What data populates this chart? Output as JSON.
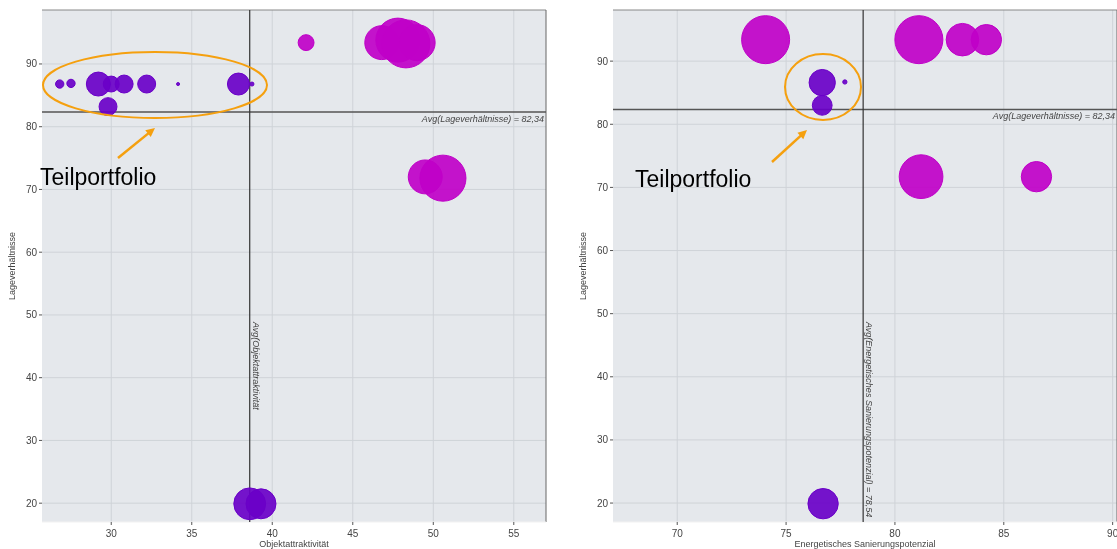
{
  "chart_data": [
    {
      "type": "bubble",
      "xlabel": "Objektattraktivität",
      "ylabel": "Lageverhältnisse",
      "xlim": [
        25.7,
        57
      ],
      "ylim": [
        17,
        98.6
      ],
      "xticks": [
        30,
        35,
        40,
        45,
        50,
        55
      ],
      "yticks": [
        20,
        30,
        40,
        50,
        60,
        70,
        80,
        90
      ],
      "grid": true,
      "ref_lines": [
        {
          "axis": "y",
          "value": 82.34,
          "label": "Avg(Lageverhältnisse) = 82,34"
        },
        {
          "axis": "x",
          "value": 38.6,
          "label": "Avg(Objektattraktivität"
        }
      ],
      "annotations": [
        "Teilportfolio"
      ],
      "series": [
        {
          "color": "#6a00c8",
          "x": [
            26.8,
            27.5,
            30.0,
            29.2,
            30.8,
            32.2,
            34.15,
            37.9,
            38.74,
            29.8,
            38.6,
            39.3
          ],
          "values": [
            86.8,
            86.9,
            86.8,
            86.8,
            86.8,
            86.8,
            86.8,
            86.8,
            86.8,
            83.2,
            19.9,
            19.9
          ],
          "sizes": [
            0.03,
            0.03,
            0.11,
            0.25,
            0.14,
            0.14,
            0.004,
            0.21,
            0.007,
            0.14,
            0.44,
            0.39
          ]
        },
        {
          "color": "#c000c8",
          "x": [
            42.1,
            46.8,
            47.8,
            48.3,
            49.0,
            49.5,
            50.6
          ],
          "values": [
            93.4,
            93.4,
            93.8,
            93.2,
            93.4,
            72.0,
            71.8
          ],
          "sizes": [
            0.11,
            0.5,
            0.84,
            1,
            0.56,
            0.5,
            0.92
          ]
        }
      ]
    },
    {
      "type": "bubble",
      "xlabel": "Energetisches Sanierungspotenzial",
      "ylabel": "Lageverhältnisse",
      "xlim": [
        67.05,
        90.2
      ],
      "ylim": [
        17,
        98.1
      ],
      "xticks": [
        70,
        75,
        80,
        85,
        90
      ],
      "yticks": [
        20,
        30,
        40,
        50,
        60,
        70,
        80,
        90
      ],
      "grid": true,
      "ref_lines": [
        {
          "axis": "y",
          "value": 82.34,
          "label": "Avg(Lageverhältnisse) = 82,34"
        },
        {
          "axis": "x",
          "value": 78.54,
          "label": "Avg(Energetisches Sanierungspotenzial) = 78,54"
        }
      ],
      "annotations": [
        "Teilportfolio"
      ],
      "series": [
        {
          "color": "#6a00c8",
          "x": [
            76.66,
            77.7,
            76.66,
            76.7
          ],
          "values": [
            86.6,
            86.7,
            83.0,
            19.9
          ],
          "sizes": [
            0.3,
            0.008,
            0.17,
            0.4
          ]
        },
        {
          "color": "#c000c8",
          "x": [
            74.06,
            81.1,
            83.1,
            84.2,
            81.2,
            86.5
          ],
          "values": [
            93.4,
            93.4,
            93.4,
            93.4,
            71.7,
            71.7
          ],
          "sizes": [
            1,
            1,
            0.46,
            0.4,
            0.83,
            0.4
          ]
        }
      ]
    }
  ]
}
